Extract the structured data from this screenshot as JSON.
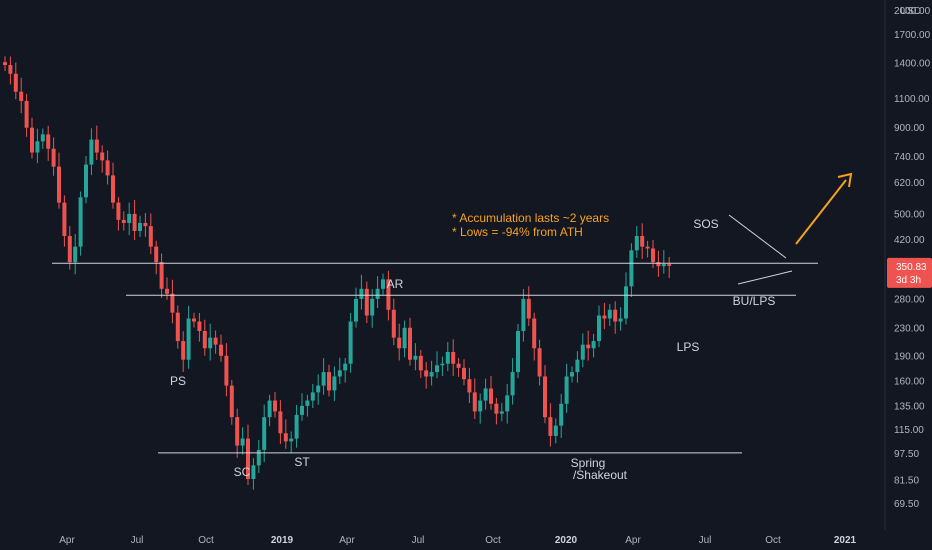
{
  "chart_data": {
    "type": "candlestick",
    "currency": "USD",
    "y_scale": "log",
    "ylim": [
      62,
      2150
    ],
    "y_ticks": [
      "2000.00",
      "1700.00",
      "1400.00",
      "1100.00",
      "900.00",
      "740.00",
      "620.00",
      "500.00",
      "420.00",
      "350.83",
      "280.00",
      "230.00",
      "190.00",
      "160.00",
      "135.00",
      "115.00",
      "97.50",
      "81.50",
      "69.50"
    ],
    "y_tick_values": [
      2000,
      1700,
      1400,
      1100,
      900,
      740,
      620,
      500,
      420,
      350.83,
      280,
      230,
      190,
      160,
      135,
      115,
      97.5,
      81.5,
      69.5
    ],
    "x_ticks": [
      "Apr",
      "Jul",
      "Oct",
      "2019",
      "Apr",
      "Jul",
      "Oct",
      "2020",
      "Apr",
      "Jul",
      "Oct",
      "2021"
    ],
    "x_tick_bold": [
      false,
      false,
      false,
      true,
      false,
      false,
      false,
      true,
      false,
      false,
      false,
      true
    ],
    "current_price": "350.83",
    "countdown": "3d 3h",
    "colors": {
      "up": "#26a69a",
      "down": "#ef5350",
      "price_tag": "#ef5350",
      "annotation": "#f7a21b",
      "line": "#d1d4dc"
    },
    "closes": [
      1380,
      1300,
      1150,
      1080,
      900,
      760,
      820,
      860,
      780,
      690,
      540,
      430,
      360,
      400,
      560,
      700,
      830,
      760,
      720,
      650,
      540,
      480,
      470,
      500,
      445,
      470,
      460,
      400,
      360,
      300,
      290,
      255,
      210,
      185,
      245,
      240,
      225,
      200,
      215,
      205,
      190,
      155,
      125,
      103,
      108,
      82,
      90,
      100,
      125,
      140,
      130,
      112,
      106,
      108,
      127,
      135,
      140,
      148,
      155,
      170,
      150,
      165,
      172,
      180,
      240,
      280,
      300,
      250,
      280,
      300,
      320,
      260,
      215,
      200,
      230,
      185,
      190,
      172,
      165,
      170,
      178,
      180,
      195,
      180,
      175,
      162,
      148,
      130,
      140,
      152,
      137,
      128,
      130,
      145,
      170,
      225,
      280,
      245,
      200,
      165,
      125,
      110,
      118,
      137,
      165,
      170,
      185,
      205,
      200,
      210,
      250,
      245,
      260,
      240,
      245,
      305,
      390,
      430,
      400,
      395,
      360,
      350,
      355,
      350.83
    ],
    "annotations": [
      {
        "label": "PS",
        "date_index": 33
      },
      {
        "label": "SC",
        "date_index": 45
      },
      {
        "label": "ST",
        "date_index": 52
      },
      {
        "label": "AR",
        "date_index": 70
      },
      {
        "label": "Spring",
        "date_index": 101
      },
      {
        "label": "/Shakeout",
        "date_index": 101
      },
      {
        "label": "LPS",
        "date_index": 111
      },
      {
        "label": "SOS",
        "date_index": 117
      },
      {
        "label": "BU/LPS",
        "date_index": 120
      }
    ],
    "notes": [
      "* Accumulation lasts ~2 years",
      "* Lows = -94% from ATH"
    ],
    "horizontal_levels": [
      357,
      287,
      98
    ]
  }
}
